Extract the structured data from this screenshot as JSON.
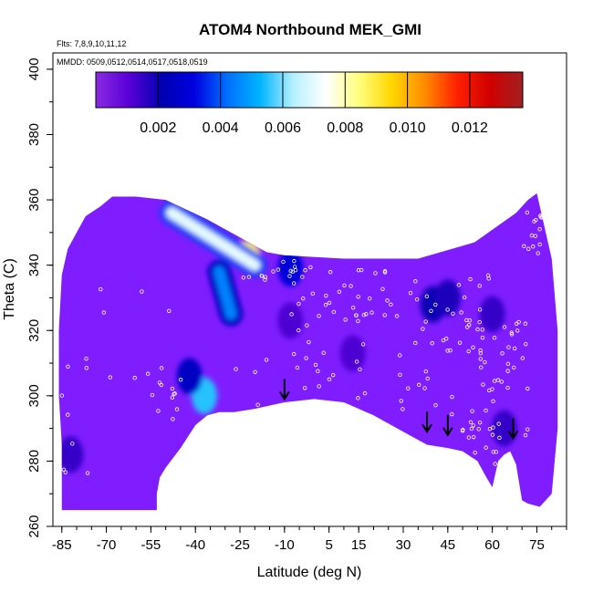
{
  "chart_data": {
    "type": "heatmap",
    "title": "ATOM4 Northbound MEK_GMI",
    "subtitle_flights": "Flts: 7,8,9,10,11,12",
    "subtitle_dates": "MMDD: 0509,0512,0514,0517,0518,0519",
    "xlabel": "Latitude (deg N)",
    "ylabel": "Theta (C)",
    "xlim": [
      -88,
      85
    ],
    "ylim": [
      260,
      405
    ],
    "x_ticks": [
      -85,
      -70,
      -55,
      -40,
      -25,
      -10,
      5,
      15,
      30,
      45,
      60,
      75
    ],
    "y_ticks": [
      260,
      280,
      300,
      320,
      340,
      360,
      380,
      400
    ],
    "colorbar": {
      "range": [
        0,
        0.0137
      ],
      "ticks": [
        "0.002",
        "0.004",
        "0.006",
        "0.008",
        "0.010",
        "0.012"
      ],
      "tick_values": [
        0.002,
        0.004,
        0.006,
        0.008,
        0.01,
        0.012
      ],
      "colors": [
        "#8a2be2",
        "#5a00d8",
        "#0000b0",
        "#0000e0",
        "#0070ff",
        "#00b4ff",
        "#b4f0ff",
        "#ffffff",
        "#ffff80",
        "#ffd700",
        "#ff8c00",
        "#ff2000",
        "#d00000",
        "#a02020"
      ]
    },
    "background_color": "#7f1dff",
    "features": [
      {
        "kind": "high",
        "lat": -23,
        "theta": 343,
        "value": 0.0125
      },
      {
        "kind": "band",
        "from": [
          -48,
          356
        ],
        "to": [
          -20,
          340
        ],
        "value": 0.007
      },
      {
        "kind": "band",
        "from": [
          -32,
          338
        ],
        "to": [
          -28,
          325
        ],
        "value": 0.0045
      },
      {
        "kind": "blob",
        "lat": -37,
        "theta": 300,
        "value": 0.0055
      },
      {
        "kind": "blob",
        "lat": -42,
        "theta": 306,
        "value": 0.0025
      },
      {
        "kind": "blob",
        "lat": 40,
        "theta": 328,
        "value": 0.002
      },
      {
        "kind": "blob",
        "lat": 45,
        "theta": 330,
        "value": 0.0018
      },
      {
        "kind": "blob",
        "lat": 60,
        "theta": 325,
        "value": 0.0015
      },
      {
        "kind": "blob",
        "lat": 64,
        "theta": 290,
        "value": 0.0015
      },
      {
        "kind": "blob",
        "lat": -82,
        "theta": 282,
        "value": 0.0015
      },
      {
        "kind": "blob",
        "lat": -8,
        "theta": 323,
        "value": 0.0012
      },
      {
        "kind": "blob",
        "lat": 13,
        "theta": 313,
        "value": 0.0012
      },
      {
        "kind": "blob",
        "lat": -8,
        "theta": 339,
        "value": 0.003
      }
    ],
    "arrows_lat": [
      -10,
      38,
      45,
      67
    ],
    "arrows_theta": [
      299,
      289,
      288,
      287
    ]
  }
}
